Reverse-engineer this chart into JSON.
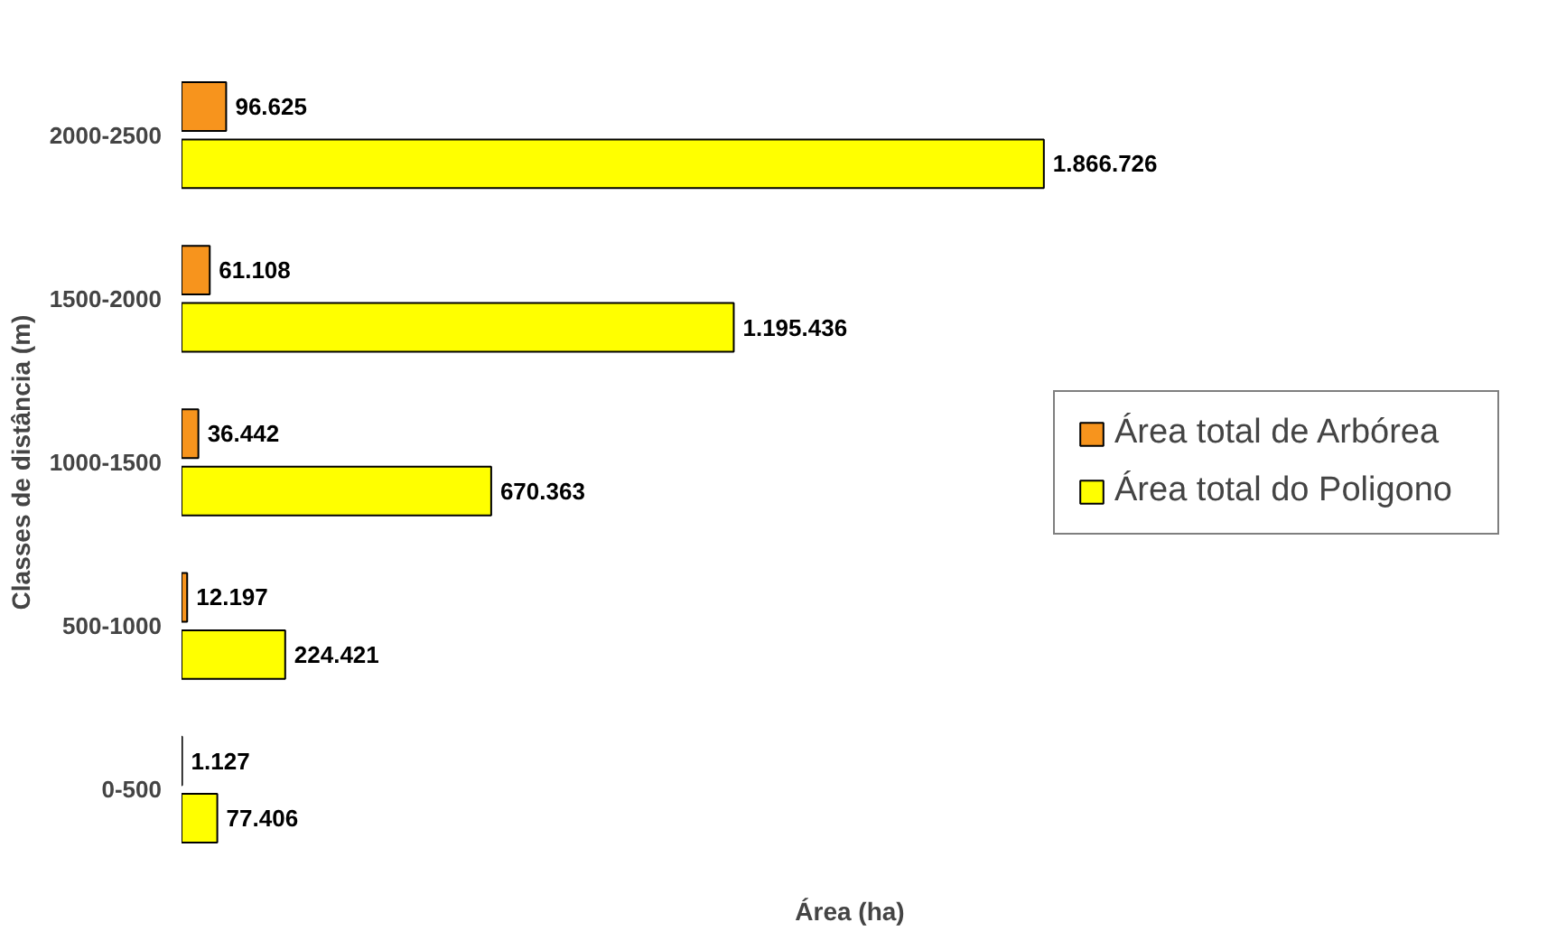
{
  "chart_data": {
    "type": "bar",
    "orientation": "horizontal",
    "xlabel": "Área (ha)",
    "ylabel": "Classes de distância (m)",
    "categories": [
      "2000-2500",
      "1500-2000",
      "1000-1500",
      "500-1000",
      "0-500"
    ],
    "series": [
      {
        "name": "Área total de Arbórea",
        "color": "#f7941d",
        "values": [
          96625,
          61108,
          36442,
          12197,
          1127
        ],
        "value_labels": [
          "96.625",
          "61.108",
          "36.442",
          "12.197",
          "1.127"
        ]
      },
      {
        "name": "Área total do Poligono",
        "color": "#ffff00",
        "values": [
          1866726,
          1195436,
          670363,
          224421,
          77406
        ],
        "value_labels": [
          "1.866.726",
          "1.195.436",
          "670.363",
          "224.421",
          "77.406"
        ]
      }
    ],
    "legend": "right",
    "tick_labels": "y",
    "grid": false
  }
}
